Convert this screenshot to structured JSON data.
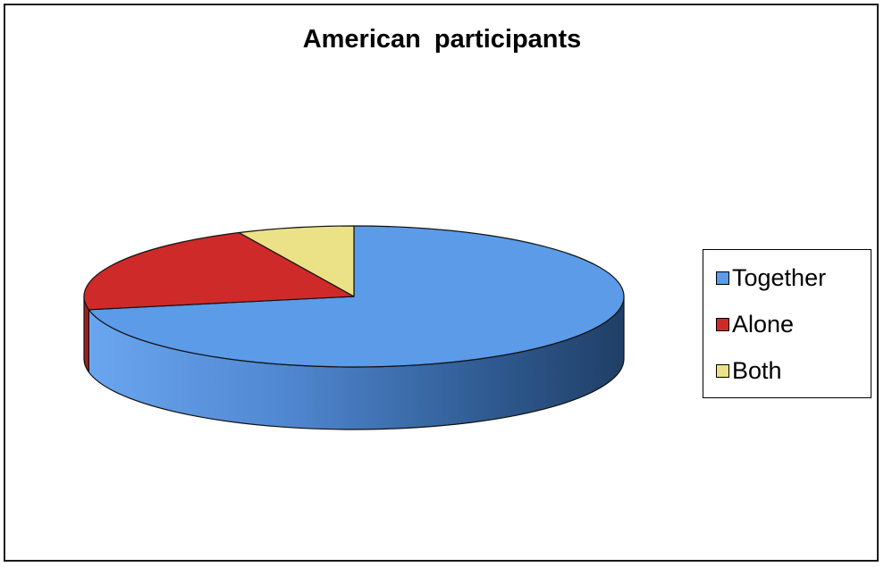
{
  "chart_data": {
    "type": "pie",
    "title": "American participants",
    "categories": [
      "Together",
      "Alone",
      "Both"
    ],
    "values": [
      72,
      21,
      7
    ],
    "unit": "percent (estimated)",
    "colors": [
      "#5b9be8",
      "#cf2a2a",
      "#ebe288"
    ],
    "side_colors": [
      "#3f72b4",
      "#9d1f1f",
      "#b5ad62"
    ],
    "legend_position": "right",
    "style": "3d-tilted"
  }
}
